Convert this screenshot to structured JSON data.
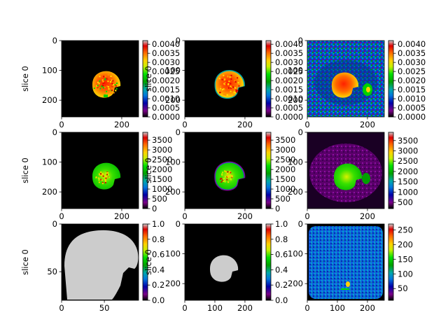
{
  "chart_data": [
    {
      "type": "heatmap",
      "ylabel": "slice 0",
      "x_ticks": [
        0,
        200
      ],
      "y_ticks": [
        0,
        100,
        200
      ],
      "xlim": [
        0,
        256
      ],
      "ylim": [
        0,
        256
      ],
      "colorbar_ticks": [
        "0.0040",
        "0.0035",
        "0.0030",
        "0.0025",
        "0.0020",
        "0.0015",
        "0.0010",
        "0.0005",
        "0.0000"
      ],
      "colorbar_range": [
        0,
        0.0042
      ],
      "colormap": "nipy_spectral",
      "content": "brain-scattered"
    },
    {
      "type": "heatmap",
      "ylabel": "slice 0",
      "x_ticks": [
        0,
        200
      ],
      "y_ticks": [
        0,
        100,
        200
      ],
      "xlim": [
        0,
        256
      ],
      "ylim": [
        0,
        256
      ],
      "colorbar_ticks": [
        "0.0040",
        "0.0035",
        "0.0030",
        "0.0025",
        "0.0020",
        "0.0015",
        "0.0010",
        "0.0005",
        "0.0000"
      ],
      "colorbar_range": [
        0,
        0.0042
      ],
      "colormap": "nipy_spectral",
      "content": "brain-ring"
    },
    {
      "type": "heatmap",
      "ylabel": "",
      "x_ticks": [
        0,
        200
      ],
      "y_ticks": [
        0,
        100,
        200
      ],
      "xlim": [
        0,
        256
      ],
      "ylim": [
        0,
        256
      ],
      "colorbar_ticks": [
        "0.0040",
        "0.0035",
        "0.0030",
        "0.0025",
        "0.0020",
        "0.0015",
        "0.0010",
        "0.0005",
        "0.0000"
      ],
      "colorbar_range": [
        0,
        0.0042
      ],
      "colormap": "nipy_spectral",
      "content": "full-noise"
    },
    {
      "type": "heatmap",
      "ylabel": "slice 0",
      "x_ticks": [
        0,
        200
      ],
      "y_ticks": [
        0,
        100,
        200
      ],
      "xlim": [
        0,
        256
      ],
      "ylim": [
        0,
        256
      ],
      "colorbar_ticks": [
        "3500",
        "3000",
        "2500",
        "2000",
        "1500",
        "1000",
        "500",
        "0"
      ],
      "colorbar_range": [
        0,
        3900
      ],
      "colormap": "nipy_spectral",
      "content": "brain-green"
    },
    {
      "type": "heatmap",
      "ylabel": "slice 0",
      "x_ticks": [
        0,
        200
      ],
      "y_ticks": [
        0,
        100,
        200
      ],
      "xlim": [
        0,
        256
      ],
      "ylim": [
        0,
        256
      ],
      "colorbar_ticks": [
        "3500",
        "3000",
        "2500",
        "2000",
        "1500",
        "1000",
        "500",
        "0"
      ],
      "colorbar_range": [
        0,
        3900
      ],
      "colormap": "nipy_spectral",
      "content": "brain-green-ring"
    },
    {
      "type": "heatmap",
      "ylabel": "",
      "x_ticks": [
        0,
        200
      ],
      "y_ticks": [
        0,
        100,
        200
      ],
      "xlim": [
        0,
        256
      ],
      "ylim": [
        0,
        256
      ],
      "colorbar_ticks": [
        "3500",
        "3000",
        "2500",
        "2000",
        "1500",
        "1000",
        "500"
      ],
      "colorbar_range": [
        200,
        3900
      ],
      "colormap": "nipy_spectral",
      "content": "full-purple"
    },
    {
      "type": "heatmap",
      "ylabel": "slice 0",
      "x_ticks": [
        0,
        50
      ],
      "y_ticks": [
        0,
        50
      ],
      "xlim": [
        0,
        90
      ],
      "ylim": [
        0,
        80
      ],
      "colorbar_ticks": [
        "1.0",
        "0.8",
        "0.6",
        "0.4",
        "0.2",
        "0.0"
      ],
      "colorbar_range": [
        0,
        1
      ],
      "colormap": "nipy_spectral",
      "content": "mask-large"
    },
    {
      "type": "heatmap",
      "ylabel": "slice 0",
      "x_ticks": [
        0,
        100,
        200
      ],
      "y_ticks": [
        0,
        100,
        200
      ],
      "xlim": [
        0,
        256
      ],
      "ylim": [
        0,
        256
      ],
      "colorbar_ticks": [
        "1.0",
        "0.8",
        "0.6",
        "0.4",
        "0.2",
        "0.0"
      ],
      "colorbar_range": [
        0,
        1
      ],
      "colormap": "nipy_spectral",
      "content": "mask-small"
    },
    {
      "type": "heatmap",
      "ylabel": "",
      "x_ticks": [
        0,
        100,
        200
      ],
      "y_ticks": [
        0,
        100,
        200
      ],
      "xlim": [
        0,
        256
      ],
      "ylim": [
        0,
        256
      ],
      "colorbar_ticks": [
        "250",
        "200",
        "150",
        "100",
        "50"
      ],
      "colorbar_range": [
        10,
        270
      ],
      "colormap": "nipy_spectral",
      "content": "body-blue"
    }
  ],
  "colors": {
    "background": "#000000",
    "mask_fill": "#cccccc",
    "colormap_stops": [
      "#000000",
      "#7b0088",
      "#0000a8",
      "#0077dd",
      "#00a8aa",
      "#00a000",
      "#00e000",
      "#c8f000",
      "#ffd000",
      "#ff6a00",
      "#dd0000",
      "#cccccc"
    ]
  }
}
